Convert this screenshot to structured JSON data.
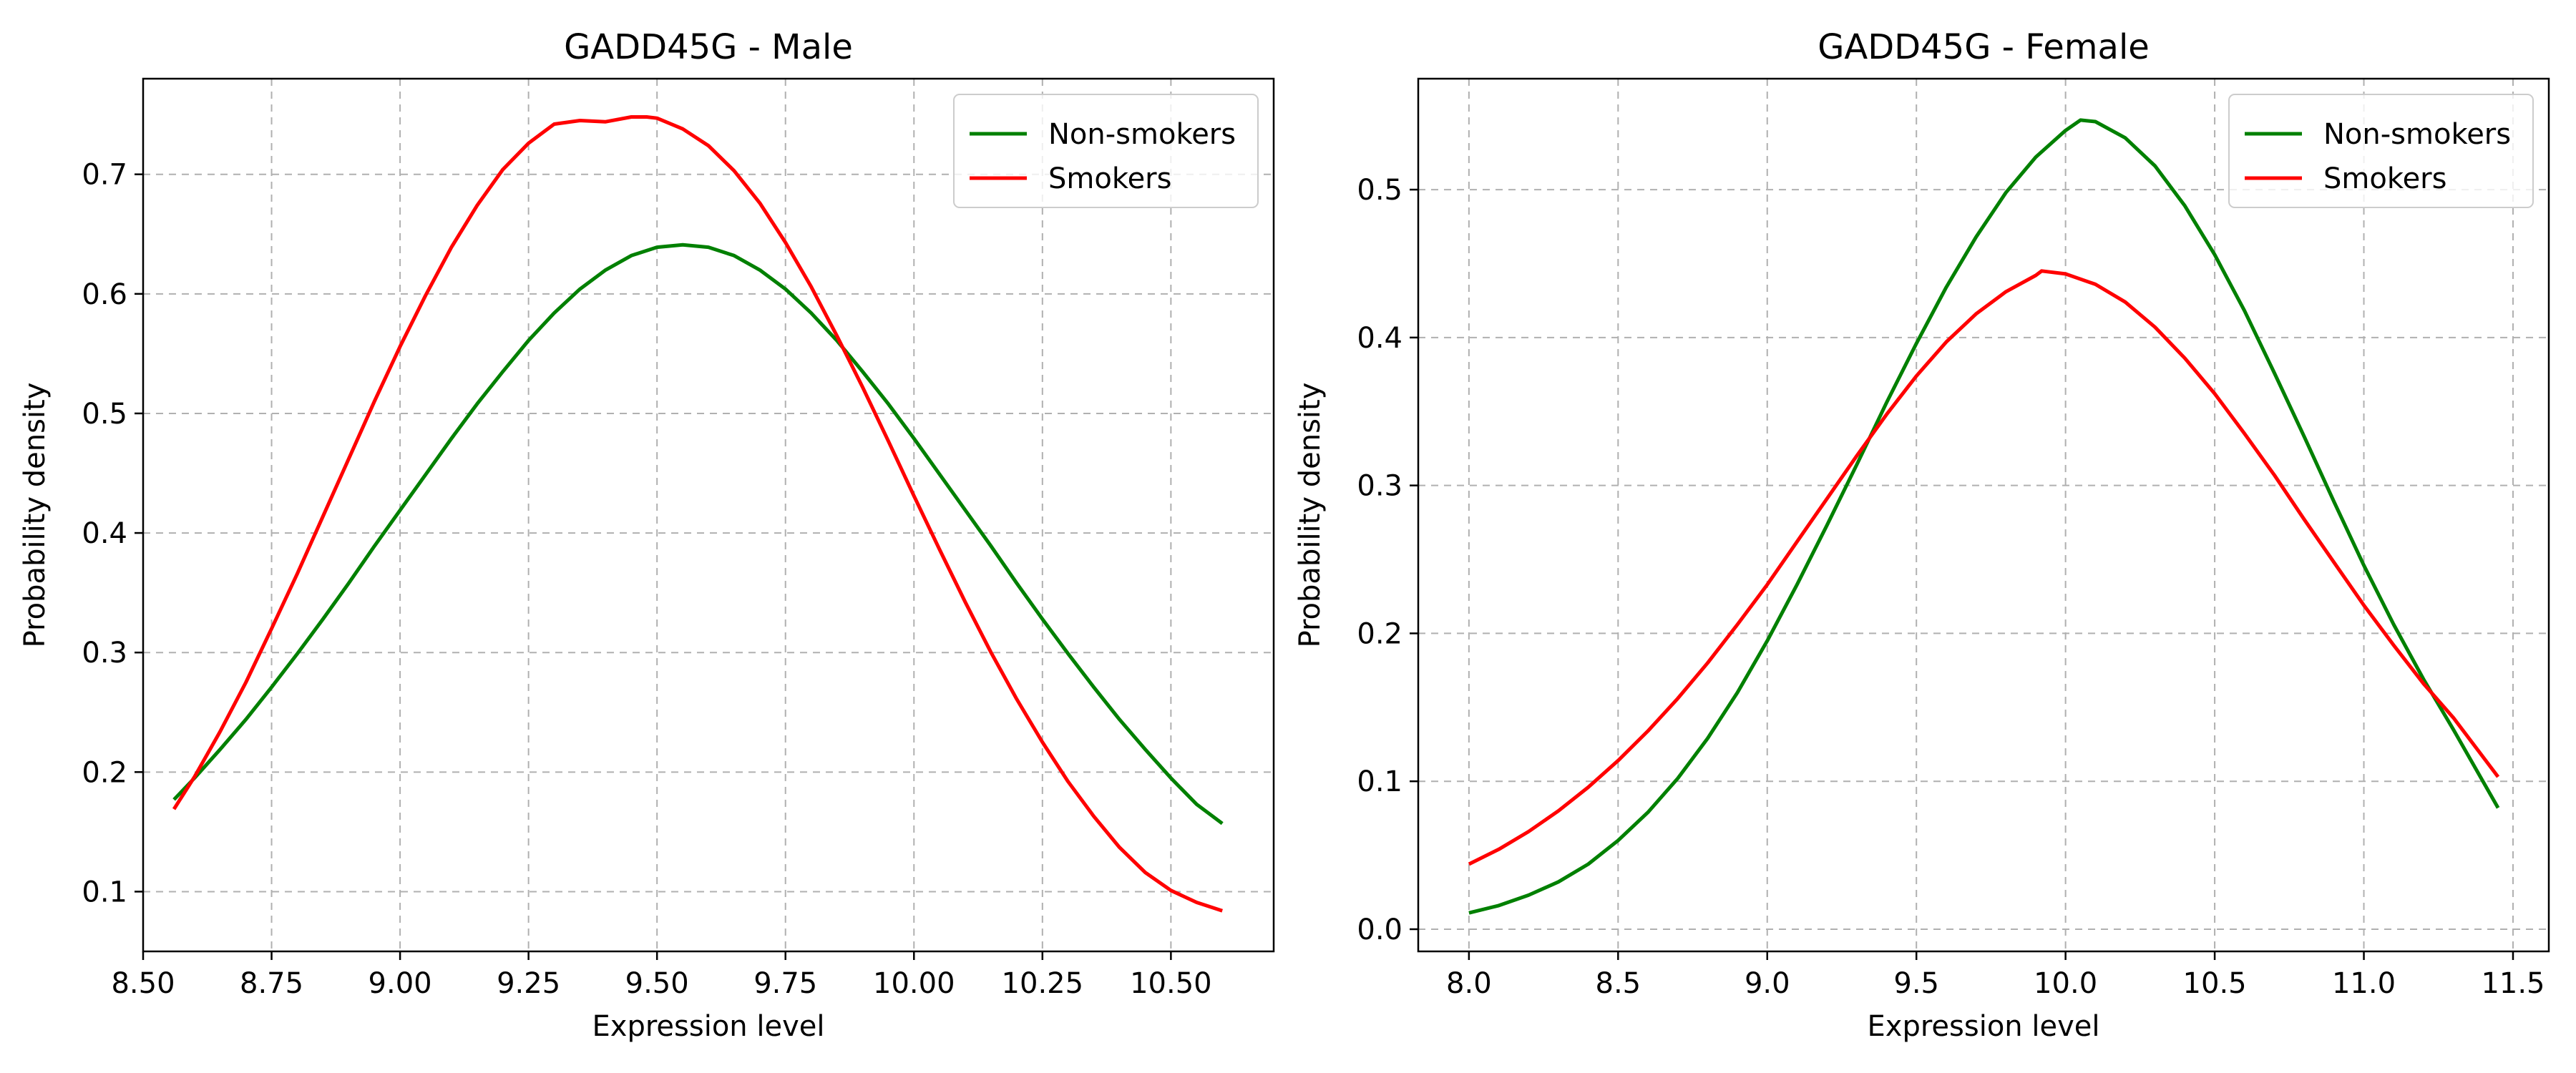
{
  "colors": {
    "non_smokers": "#008000",
    "smokers": "#ff0000",
    "grid": "#b0b0b0"
  },
  "chart_data": [
    {
      "type": "line",
      "title": "GADD45G - Male",
      "xlabel": "Expression level",
      "ylabel": "Probability density",
      "xlim": [
        8.5,
        10.7
      ],
      "ylim": [
        0.05,
        0.78
      ],
      "xticks": [
        8.5,
        8.75,
        9.0,
        9.25,
        9.5,
        9.75,
        10.0,
        10.25,
        10.5
      ],
      "xtick_labels": [
        "8.50",
        "8.75",
        "9.00",
        "9.25",
        "9.50",
        "9.75",
        "10.00",
        "10.25",
        "10.50"
      ],
      "yticks": [
        0.1,
        0.2,
        0.3,
        0.4,
        0.5,
        0.6,
        0.7
      ],
      "ytick_labels": [
        "0.1",
        "0.2",
        "0.3",
        "0.4",
        "0.5",
        "0.6",
        "0.7"
      ],
      "grid": true,
      "legend_position": "top-right",
      "series": [
        {
          "name": "Non-smokers",
          "color_key": "non_smokers",
          "x": [
            8.56,
            8.6,
            8.65,
            8.7,
            8.75,
            8.8,
            8.85,
            8.9,
            8.95,
            9.0,
            9.05,
            9.1,
            9.15,
            9.2,
            9.25,
            9.3,
            9.35,
            9.4,
            9.45,
            9.5,
            9.55,
            9.6,
            9.65,
            9.7,
            9.75,
            9.8,
            9.85,
            9.9,
            9.95,
            10.0,
            10.05,
            10.1,
            10.15,
            10.2,
            10.25,
            10.3,
            10.35,
            10.4,
            10.45,
            10.5,
            10.55,
            10.6
          ],
          "y": [
            0.177,
            0.195,
            0.219,
            0.244,
            0.271,
            0.299,
            0.328,
            0.358,
            0.389,
            0.419,
            0.449,
            0.479,
            0.508,
            0.535,
            0.561,
            0.584,
            0.604,
            0.62,
            0.632,
            0.639,
            0.641,
            0.639,
            0.632,
            0.62,
            0.604,
            0.584,
            0.561,
            0.535,
            0.508,
            0.479,
            0.449,
            0.419,
            0.389,
            0.358,
            0.328,
            0.299,
            0.271,
            0.244,
            0.219,
            0.195,
            0.173,
            0.157
          ]
        },
        {
          "name": "Smokers",
          "color_key": "smokers",
          "x": [
            8.56,
            8.6,
            8.65,
            8.7,
            8.75,
            8.8,
            8.85,
            8.9,
            8.95,
            9.0,
            9.05,
            9.1,
            9.15,
            9.2,
            9.25,
            9.3,
            9.35,
            9.4,
            9.45,
            9.48,
            9.5,
            9.55,
            9.6,
            9.65,
            9.7,
            9.75,
            9.8,
            9.85,
            9.9,
            9.95,
            10.0,
            10.05,
            10.1,
            10.15,
            10.2,
            10.25,
            10.3,
            10.35,
            10.4,
            10.45,
            10.5,
            10.55,
            10.6
          ],
          "y": [
            0.169,
            0.196,
            0.234,
            0.275,
            0.32,
            0.366,
            0.414,
            0.462,
            0.51,
            0.556,
            0.599,
            0.639,
            0.674,
            0.704,
            0.726,
            0.742,
            0.745,
            0.744,
            0.748,
            0.748,
            0.747,
            0.738,
            0.724,
            0.703,
            0.676,
            0.643,
            0.606,
            0.565,
            0.522,
            0.477,
            0.431,
            0.386,
            0.342,
            0.3,
            0.261,
            0.225,
            0.192,
            0.163,
            0.137,
            0.116,
            0.101,
            0.091,
            0.084
          ]
        }
      ]
    },
    {
      "type": "line",
      "title": "GADD45G - Female",
      "xlabel": "Expression level",
      "ylabel": "Probability density",
      "xlim": [
        7.83,
        11.62
      ],
      "ylim": [
        -0.015,
        0.575
      ],
      "xticks": [
        8.0,
        8.5,
        9.0,
        9.5,
        10.0,
        10.5,
        11.0,
        11.5
      ],
      "xtick_labels": [
        "8.0",
        "8.5",
        "9.0",
        "9.5",
        "10.0",
        "10.5",
        "11.0",
        "11.5"
      ],
      "yticks": [
        0.0,
        0.1,
        0.2,
        0.3,
        0.4,
        0.5
      ],
      "ytick_labels": [
        "0.0",
        "0.1",
        "0.2",
        "0.3",
        "0.4",
        "0.5"
      ],
      "grid": true,
      "legend_position": "top-right",
      "series": [
        {
          "name": "Non-smokers",
          "color_key": "non_smokers",
          "x": [
            8.0,
            8.1,
            8.2,
            8.3,
            8.4,
            8.5,
            8.6,
            8.7,
            8.8,
            8.9,
            9.0,
            9.1,
            9.2,
            9.3,
            9.4,
            9.5,
            9.6,
            9.7,
            9.8,
            9.9,
            10.0,
            10.05,
            10.1,
            10.2,
            10.3,
            10.4,
            10.5,
            10.6,
            10.7,
            10.8,
            10.9,
            11.0,
            11.1,
            11.2,
            11.3,
            11.45
          ],
          "y": [
            0.011,
            0.016,
            0.023,
            0.032,
            0.044,
            0.06,
            0.079,
            0.102,
            0.129,
            0.16,
            0.195,
            0.233,
            0.273,
            0.314,
            0.356,
            0.396,
            0.434,
            0.468,
            0.498,
            0.522,
            0.54,
            0.547,
            0.546,
            0.535,
            0.516,
            0.489,
            0.456,
            0.418,
            0.376,
            0.333,
            0.289,
            0.246,
            0.206,
            0.169,
            0.135,
            0.082
          ]
        },
        {
          "name": "Smokers",
          "color_key": "smokers",
          "x": [
            8.0,
            8.1,
            8.2,
            8.3,
            8.4,
            8.5,
            8.6,
            8.7,
            8.8,
            8.9,
            9.0,
            9.1,
            9.2,
            9.3,
            9.4,
            9.5,
            9.6,
            9.7,
            9.8,
            9.9,
            9.92,
            10.0,
            10.1,
            10.2,
            10.3,
            10.4,
            10.5,
            10.6,
            10.7,
            10.8,
            10.9,
            11.0,
            11.1,
            11.2,
            11.3,
            11.45
          ],
          "y": [
            0.044,
            0.054,
            0.066,
            0.08,
            0.096,
            0.114,
            0.134,
            0.156,
            0.18,
            0.206,
            0.233,
            0.262,
            0.291,
            0.32,
            0.348,
            0.374,
            0.397,
            0.416,
            0.431,
            0.442,
            0.445,
            0.443,
            0.436,
            0.424,
            0.407,
            0.386,
            0.362,
            0.335,
            0.307,
            0.277,
            0.248,
            0.219,
            0.192,
            0.166,
            0.143,
            0.103
          ]
        }
      ]
    }
  ]
}
